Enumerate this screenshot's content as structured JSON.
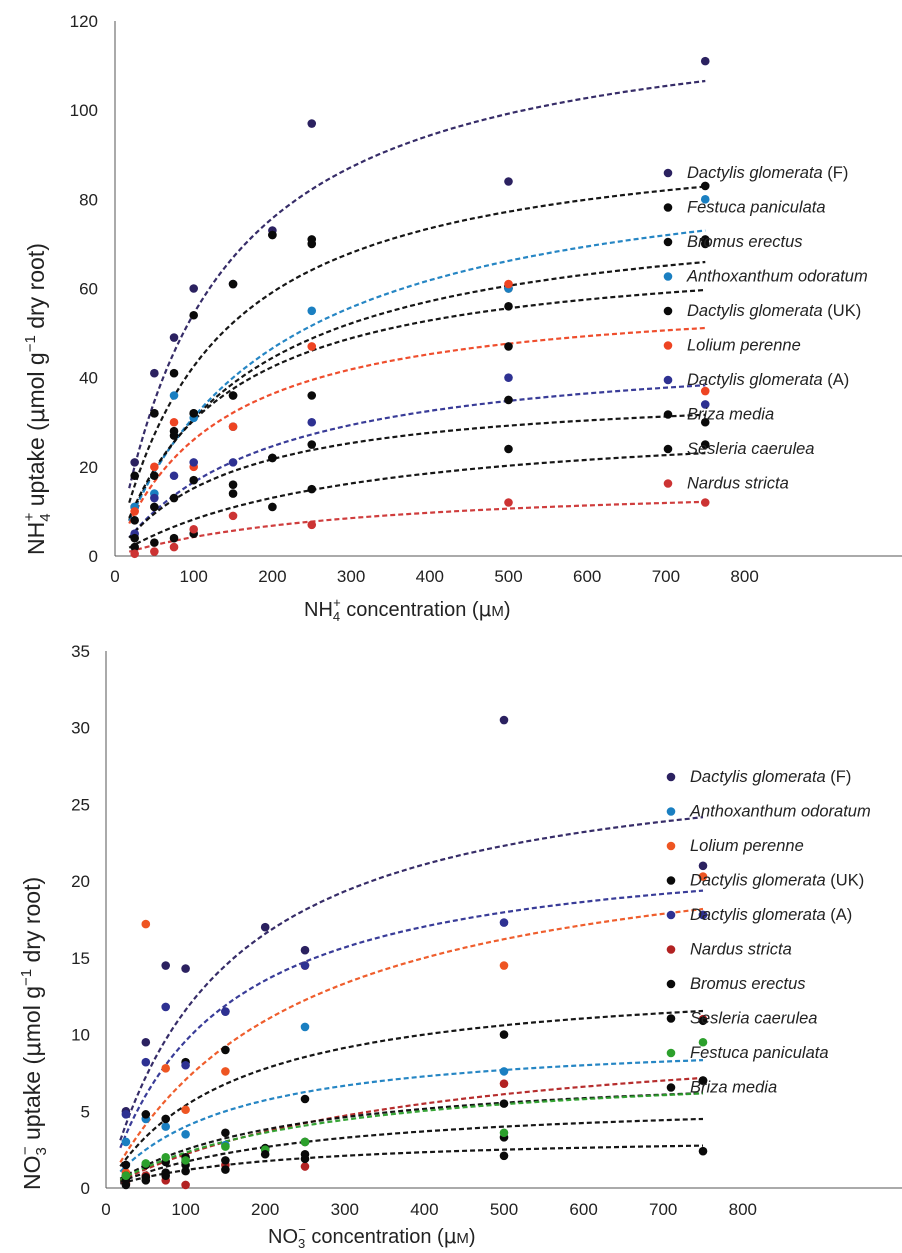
{
  "chart_data": [
    {
      "type": "scatter",
      "title": "",
      "xlabel": "NH4+ concentration (μM)",
      "ylabel": "NH4+ uptake (μmol g−1 dry root)",
      "x_ticks": [
        0,
        100,
        200,
        300,
        400,
        500,
        600,
        700,
        800
      ],
      "y_ticks": [
        0,
        20,
        40,
        60,
        80,
        100,
        120
      ],
      "xlim": [
        0,
        1000
      ],
      "ylim": [
        0,
        120
      ],
      "grid": false,
      "legend_position": "right",
      "trendline": "dashed Michaelis-Menten fit",
      "series": [
        {
          "name": "Dactylis glomerata",
          "qualifier": "(F)",
          "color": "#2b2160",
          "x": [
            25,
            50,
            75,
            100,
            150,
            200,
            250,
            500,
            750
          ],
          "y": [
            21,
            41,
            49,
            60,
            61,
            73,
            97,
            84,
            111
          ],
          "fit_vmax": 125,
          "fit_km": 130
        },
        {
          "name": "Festuca paniculata",
          "qualifier": "",
          "color": "#0a0a0a",
          "x": [
            25,
            50,
            75,
            100,
            150,
            200,
            250,
            500,
            750
          ],
          "y": [
            18,
            32,
            41,
            54,
            61,
            72,
            71,
            60,
            83
          ],
          "fit_vmax": 97,
          "fit_km": 128
        },
        {
          "name": "Bromus erectus",
          "qualifier": "",
          "color": "#0a0a0a",
          "x": [
            25,
            50,
            75,
            100,
            150,
            200,
            250,
            500,
            750
          ],
          "y": [
            11,
            32,
            28,
            32,
            36,
            72,
            70,
            56,
            71
          ],
          "fit_vmax": 80,
          "fit_km": 160
        },
        {
          "name": "Anthoxanthum odoratum",
          "qualifier": "",
          "color": "#1a7fc1",
          "x": [
            25,
            50,
            75,
            100,
            150,
            250,
            500,
            750
          ],
          "y": [
            11,
            14,
            36,
            31,
            29,
            55,
            60,
            80
          ],
          "fit_vmax": 92,
          "fit_km": 195
        },
        {
          "name": "Dactylis glomerata",
          "qualifier": "(UK)",
          "color": "#0a0a0a",
          "x": [
            25,
            50,
            75,
            100,
            150,
            200,
            250,
            500,
            750
          ],
          "y": [
            8,
            18,
            27,
            32,
            36,
            22,
            36,
            47,
            70
          ],
          "fit_vmax": 70,
          "fit_km": 130
        },
        {
          "name": "Lolium perenne",
          "qualifier": "",
          "color": "#ee4422",
          "x": [
            25,
            50,
            75,
            100,
            150,
            250,
            500,
            750
          ],
          "y": [
            10,
            20,
            30,
            20,
            29,
            47,
            61,
            37
          ],
          "fit_vmax": 60,
          "fit_km": 130
        },
        {
          "name": "Dactylis glomerata",
          "qualifier": "(A)",
          "color": "#2e3192",
          "x": [
            25,
            50,
            75,
            100,
            150,
            250,
            500,
            750
          ],
          "y": [
            5,
            13,
            18,
            21,
            21,
            30,
            40,
            34
          ],
          "fit_vmax": 48,
          "fit_km": 190
        },
        {
          "name": "Briza media",
          "qualifier": "",
          "color": "#0a0a0a",
          "x": [
            25,
            50,
            75,
            100,
            150,
            200,
            250,
            500,
            750
          ],
          "y": [
            4,
            11,
            13,
            17,
            16,
            22,
            25,
            35,
            30
          ],
          "fit_vmax": 38,
          "fit_km": 150
        },
        {
          "name": "Sesleria caerulea",
          "qualifier": "",
          "color": "#0a0a0a",
          "x": [
            25,
            50,
            75,
            100,
            150,
            200,
            250,
            500,
            750
          ],
          "y": [
            2,
            3,
            4,
            5,
            14,
            11,
            15,
            24,
            25
          ],
          "fit_vmax": 32,
          "fit_km": 290
        },
        {
          "name": "Nardus stricta",
          "qualifier": "",
          "color": "#cc3333",
          "x": [
            25,
            50,
            75,
            100,
            150,
            250,
            500,
            750
          ],
          "y": [
            0.5,
            1,
            2,
            6,
            9,
            7,
            12,
            12
          ],
          "fit_vmax": 17,
          "fit_km": 300
        }
      ]
    },
    {
      "type": "scatter",
      "title": "",
      "xlabel": "NO3− concentration (μM)",
      "ylabel": "NO3− uptake (μmol g−1 dry root)",
      "x_ticks": [
        0,
        100,
        200,
        300,
        400,
        500,
        600,
        700,
        800
      ],
      "y_ticks": [
        0,
        5,
        10,
        15,
        20,
        25,
        30,
        35
      ],
      "xlim": [
        0,
        1000
      ],
      "ylim": [
        0,
        35
      ],
      "grid": false,
      "legend_position": "right",
      "trendline": "dashed Michaelis-Menten fit",
      "series": [
        {
          "name": "Dactylis glomerata",
          "qualifier": "(F)",
          "color": "#2b2160",
          "x": [
            25,
            50,
            75,
            100,
            150,
            200,
            250,
            500,
            750
          ],
          "y": [
            5,
            9.5,
            14.5,
            14.3,
            11.5,
            17,
            15.5,
            30.5,
            21
          ],
          "fit_vmax": 29,
          "fit_km": 150
        },
        {
          "name": "Anthoxanthum odoratum",
          "qualifier": "",
          "color": "#1a7fc1",
          "x": [
            25,
            50,
            75,
            100,
            150,
            250,
            500,
            750
          ],
          "y": [
            3,
            4.5,
            4,
            3.5,
            2.8,
            10.5,
            7.6,
            17.8
          ],
          "fit_vmax": 10,
          "fit_km": 150
        },
        {
          "name": "Lolium perenne",
          "qualifier": "",
          "color": "#ee5522",
          "x": [
            25,
            50,
            75,
            100,
            150,
            250,
            500,
            750
          ],
          "y": [
            1,
            17.2,
            7.8,
            5.1,
            7.6,
            14.5,
            14.5,
            20.3
          ],
          "fit_vmax": 24,
          "fit_km": 240
        },
        {
          "name": "Dactylis glomerata",
          "qualifier": "(UK)",
          "color": "#0a0a0a",
          "x": [
            25,
            50,
            75,
            100,
            150,
            250,
            500,
            750
          ],
          "y": [
            1.5,
            4.8,
            4.5,
            8.2,
            9,
            5.8,
            10,
            7
          ],
          "fit_vmax": 14,
          "fit_km": 160
        },
        {
          "name": "Dactylis glomerata",
          "qualifier": "(A)",
          "color": "#2e3192",
          "x": [
            25,
            50,
            75,
            100,
            150,
            250,
            500,
            750
          ],
          "y": [
            4.8,
            8.2,
            11.8,
            8,
            11.5,
            14.5,
            17.3,
            17.8
          ],
          "fit_vmax": 23,
          "fit_km": 140
        },
        {
          "name": "Nardus stricta",
          "qualifier": "",
          "color": "#b22222",
          "x": [
            25,
            50,
            75,
            100,
            150,
            250,
            500,
            750
          ],
          "y": [
            0.3,
            0.8,
            0.5,
            0.2,
            1.5,
            1.4,
            6.8,
            11
          ],
          "fit_vmax": 11,
          "fit_km": 400
        },
        {
          "name": "Bromus erectus",
          "qualifier": "",
          "color": "#0a0a0a",
          "x": [
            25,
            50,
            75,
            100,
            150,
            200,
            250,
            500,
            750
          ],
          "y": [
            0.8,
            1.5,
            1.7,
            2,
            3.6,
            2.6,
            3,
            5.5,
            10.9
          ],
          "fit_vmax": 8,
          "fit_km": 220
        },
        {
          "name": "Sesleria caerulea",
          "qualifier": "",
          "color": "#0a0a0a",
          "x": [
            25,
            50,
            75,
            100,
            150,
            200,
            250,
            500,
            750
          ],
          "y": [
            0.5,
            0.7,
            1,
            1.5,
            1.8,
            2.5,
            2.2,
            3.3,
            7
          ],
          "fit_vmax": 6,
          "fit_km": 250
        },
        {
          "name": "Festuca paniculata",
          "qualifier": "",
          "color": "#2ca02c",
          "x": [
            25,
            50,
            75,
            100,
            150,
            200,
            250,
            500,
            750
          ],
          "y": [
            0.8,
            1.6,
            2,
            1.8,
            2.7,
            2.5,
            3,
            3.6,
            9.5
          ],
          "fit_vmax": 8.3,
          "fit_km": 260
        },
        {
          "name": "Briza media",
          "qualifier": "",
          "color": "#0a0a0a",
          "x": [
            25,
            50,
            75,
            100,
            150,
            200,
            250,
            500,
            750
          ],
          "y": [
            0.2,
            0.5,
            0.8,
            1.1,
            1.2,
            2.2,
            1.9,
            2.1,
            2.4
          ],
          "fit_vmax": 3.5,
          "fit_km": 200
        }
      ]
    }
  ]
}
